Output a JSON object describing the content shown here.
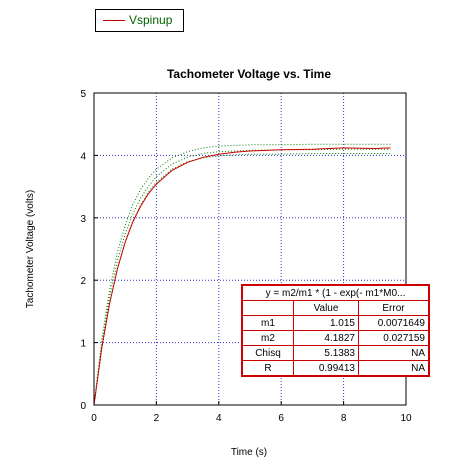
{
  "legend": {
    "label": "Vspinup",
    "line_color": "#c00000",
    "text_color": "#006000"
  },
  "fit_table": {
    "equation": "y = m2/m1 * (1 - exp(- m1*M0...",
    "columns": [
      "",
      "Value",
      "Error"
    ],
    "rows": [
      {
        "name": "m1",
        "value": "1.015",
        "error": "0.0071649"
      },
      {
        "name": "m2",
        "value": "4.1827",
        "error": "0.027159"
      },
      {
        "name": "Chisq",
        "value": "5.1383",
        "error": "NA"
      },
      {
        "name": "R",
        "value": "0.99413",
        "error": "NA"
      }
    ]
  },
  "chart_data": {
    "type": "line",
    "title": "Tachometer Voltage vs. Time",
    "xlabel": "Time (s)",
    "ylabel": "Tachometer Voltage (volts)",
    "xlim": [
      0,
      10
    ],
    "ylim": [
      0,
      5
    ],
    "xticks": [
      0,
      2,
      4,
      6,
      8,
      10
    ],
    "yticks": [
      0,
      1,
      2,
      3,
      4,
      5
    ],
    "grid": true,
    "legend_position": "top-left",
    "series": [
      {
        "name": "Vspinup",
        "style": "solid",
        "color": "#cc0000",
        "x": [
          0,
          0.25,
          0.5,
          0.75,
          1.0,
          1.25,
          1.5,
          1.75,
          2.0,
          2.5,
          3.0,
          3.5,
          4.0,
          4.5,
          5.0,
          6.0,
          7.0,
          8.0,
          9.0,
          9.5
        ],
        "y": [
          0,
          0.92,
          1.63,
          2.18,
          2.61,
          2.94,
          3.19,
          3.39,
          3.54,
          3.76,
          3.89,
          3.97,
          4.02,
          4.05,
          4.07,
          4.09,
          4.1,
          4.12,
          4.11,
          4.12
        ]
      },
      {
        "style": "dotted",
        "color": "#008000",
        "x": [
          0,
          0.25,
          0.5,
          0.75,
          1.0,
          1.25,
          1.5,
          1.75,
          2.0,
          2.5,
          3.0,
          3.5,
          4.0,
          4.5,
          5.0,
          6.0,
          7.0,
          8.0,
          9.0,
          9.5
        ],
        "y": [
          0,
          1.05,
          1.85,
          2.45,
          2.88,
          3.22,
          3.46,
          3.64,
          3.78,
          3.96,
          4.06,
          4.12,
          4.15,
          4.16,
          4.17,
          4.17,
          4.18,
          4.18,
          4.18,
          4.18
        ]
      },
      {
        "style": "dotted",
        "color": "#008000",
        "x": [
          0,
          0.25,
          0.5,
          0.75,
          1.0,
          1.25,
          1.5,
          1.75,
          2.0,
          2.5,
          3.0,
          3.5,
          4.0,
          4.5,
          5.0,
          6.0,
          7.0,
          8.0,
          9.0,
          9.5
        ],
        "y": [
          0,
          0.98,
          1.74,
          2.31,
          2.74,
          3.07,
          3.32,
          3.51,
          3.66,
          3.86,
          3.97,
          4.03,
          4.06,
          4.07,
          4.08,
          4.09,
          4.09,
          4.1,
          4.1,
          4.1
        ]
      },
      {
        "style": "dotted",
        "color": "#008000",
        "x": [
          0,
          0.25,
          0.5,
          0.75,
          1.0,
          1.25,
          1.5,
          1.75,
          2.0,
          2.5,
          3.0,
          3.5,
          4.0,
          4.5,
          5.0,
          6.0,
          7.0,
          8.0,
          9.0,
          9.5
        ],
        "y": [
          0,
          0.9,
          1.62,
          2.18,
          2.61,
          2.95,
          3.21,
          3.42,
          3.57,
          3.78,
          3.9,
          3.96,
          3.99,
          4.01,
          4.02,
          4.02,
          4.03,
          4.03,
          4.03,
          4.03
        ]
      }
    ]
  }
}
